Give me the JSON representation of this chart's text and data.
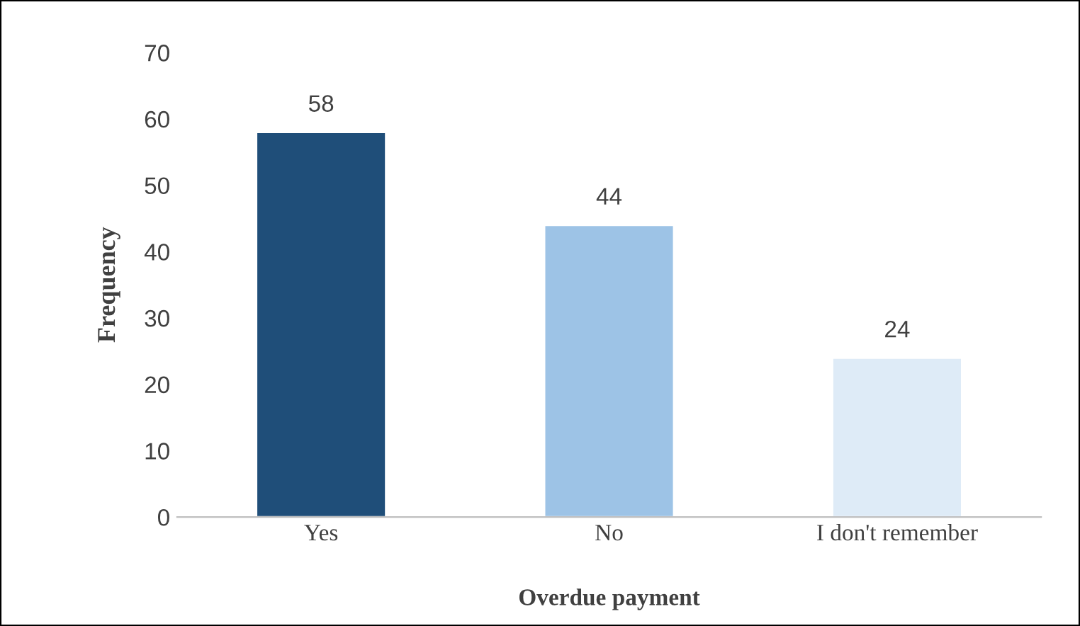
{
  "chart_data": {
    "type": "bar",
    "xlabel": "Overdue payment",
    "ylabel": "Frequency",
    "categories": [
      "Yes",
      "No",
      "I don't remember"
    ],
    "values": [
      58,
      44,
      24
    ],
    "colors": [
      "#1f4e79",
      "#9dc3e6",
      "#deebf7"
    ],
    "ylim": [
      0,
      70
    ],
    "yticks": [
      0,
      10,
      20,
      30,
      40,
      50,
      60,
      70
    ],
    "data_labels": true,
    "grid": false,
    "legend": false
  }
}
